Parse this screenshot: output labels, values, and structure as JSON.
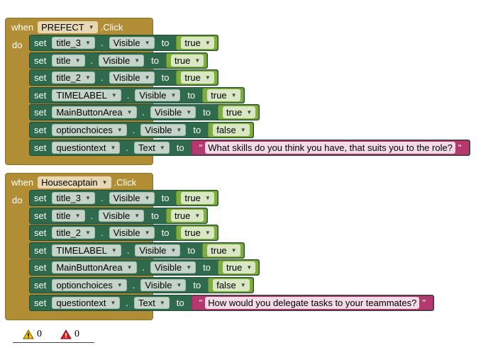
{
  "events": [
    {
      "when_label": "when",
      "do_label": "do",
      "component": "PREFECT",
      "event": ".Click",
      "statements": [
        {
          "set": "set",
          "component": "title_3",
          "dot": ".",
          "property": "Visible",
          "to": "to",
          "value_type": "bool",
          "value": "true"
        },
        {
          "set": "set",
          "component": "title",
          "dot": ".",
          "property": "Visible",
          "to": "to",
          "value_type": "bool",
          "value": "true"
        },
        {
          "set": "set",
          "component": "title_2",
          "dot": ".",
          "property": "Visible",
          "to": "to",
          "value_type": "bool",
          "value": "true"
        },
        {
          "set": "set",
          "component": "TIMELABEL",
          "dot": ".",
          "property": "Visible",
          "to": "to",
          "value_type": "bool",
          "value": "true"
        },
        {
          "set": "set",
          "component": "MainButtonArea",
          "dot": ".",
          "property": "Visible",
          "to": "to",
          "value_type": "bool",
          "value": "true"
        },
        {
          "set": "set",
          "component": "optionchoices",
          "dot": ".",
          "property": "Visible",
          "to": "to",
          "value_type": "bool",
          "value": "false"
        },
        {
          "set": "set",
          "component": "questiontext",
          "dot": ".",
          "property": "Text",
          "to": "to",
          "value_type": "text",
          "value": "What skills do you think you have, that suits you to the role?"
        }
      ]
    },
    {
      "when_label": "when",
      "do_label": "do",
      "component": "Housecaptain",
      "event": ".Click",
      "statements": [
        {
          "set": "set",
          "component": "title_3",
          "dot": ".",
          "property": "Visible",
          "to": "to",
          "value_type": "bool",
          "value": "true"
        },
        {
          "set": "set",
          "component": "title",
          "dot": ".",
          "property": "Visible",
          "to": "to",
          "value_type": "bool",
          "value": "true"
        },
        {
          "set": "set",
          "component": "title_2",
          "dot": ".",
          "property": "Visible",
          "to": "to",
          "value_type": "bool",
          "value": "true"
        },
        {
          "set": "set",
          "component": "TIMELABEL",
          "dot": ".",
          "property": "Visible",
          "to": "to",
          "value_type": "bool",
          "value": "true"
        },
        {
          "set": "set",
          "component": "MainButtonArea",
          "dot": ".",
          "property": "Visible",
          "to": "to",
          "value_type": "bool",
          "value": "true"
        },
        {
          "set": "set",
          "component": "optionchoices",
          "dot": ".",
          "property": "Visible",
          "to": "to",
          "value_type": "bool",
          "value": "false"
        },
        {
          "set": "set",
          "component": "questiontext",
          "dot": ".",
          "property": "Text",
          "to": "to",
          "value_type": "text",
          "value": "How would you delegate tasks to your teammates?"
        }
      ]
    }
  ],
  "quote_char": "\"",
  "dropdown_arrow": "▼",
  "warnings": {
    "count": "0",
    "icon": "warning-triangle-icon",
    "color": "#f2c200"
  },
  "errors": {
    "count": "0",
    "icon": "error-triangle-icon",
    "color": "#d91f1f"
  },
  "colors": {
    "event_block": "#b18e35",
    "set_block": "#2e6a4b",
    "logic_block": "#7fae3e",
    "text_block": "#b3396e"
  }
}
